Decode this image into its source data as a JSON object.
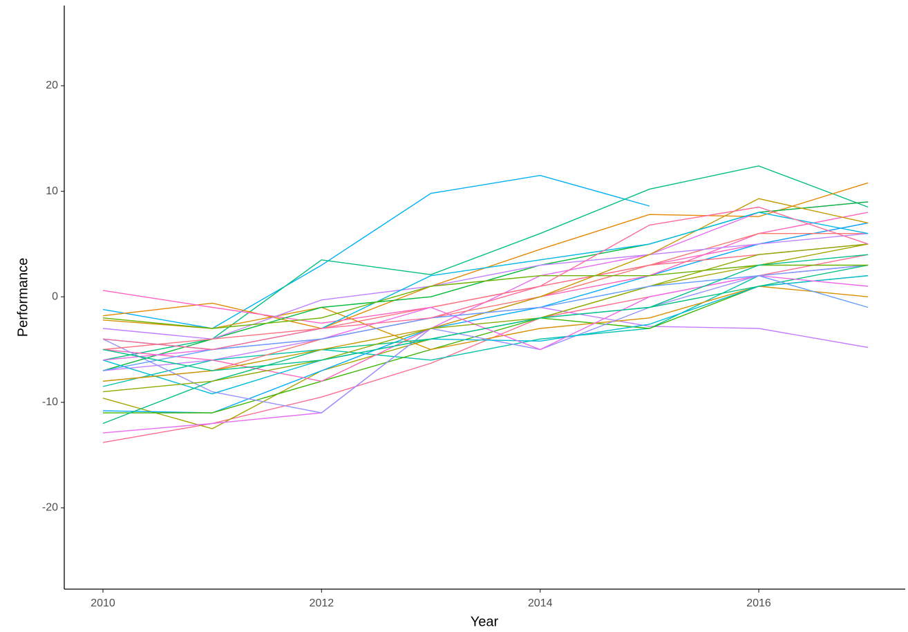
{
  "chart_data": {
    "type": "line",
    "xlabel": "Year",
    "ylabel": "Performance",
    "x": [
      2010,
      2011,
      2012,
      2013,
      2014,
      2015,
      2016,
      2017
    ],
    "xlim": [
      2009.646,
      2017.34
    ],
    "xticks": [
      2010,
      2012,
      2014,
      2016
    ],
    "ylim": [
      -27.7,
      27.6
    ],
    "yticks": [
      -20,
      -10,
      0,
      10,
      20
    ],
    "grid": false,
    "series": [
      {
        "color": "#00B0F6",
        "values": [
          -1.2,
          -3,
          3,
          9.8,
          11.5,
          8.6,
          null,
          null
        ]
      },
      {
        "color": "#00BF7D",
        "values": [
          -6,
          -4,
          3.5,
          2.1,
          6,
          10.2,
          12.4,
          8.5
        ]
      },
      {
        "color": "#C77CFF",
        "values": [
          -7,
          -6,
          -4,
          -2,
          -1,
          -2.8,
          -3,
          -4.8
        ]
      },
      {
        "color": "#E58700",
        "values": [
          -1.8,
          -0.6,
          -3,
          1,
          4.5,
          7.8,
          7.6,
          10.8
        ]
      },
      {
        "color": "#FF61C3",
        "values": [
          0.6,
          -1,
          -2.5,
          -1,
          1,
          3,
          5,
          7
        ]
      },
      {
        "color": "#FF6C91",
        "values": [
          -13.8,
          -12,
          -9.5,
          -6.3,
          -2,
          0,
          2,
          4
        ]
      },
      {
        "color": "#A3A500",
        "values": [
          -9.6,
          -12.5,
          -7,
          -4,
          -2,
          1,
          3,
          5
        ]
      },
      {
        "color": "#00C1AA",
        "values": [
          -8.5,
          -6,
          -5,
          -6,
          -4,
          -3,
          2,
          3
        ]
      },
      {
        "color": "#E76BF3",
        "values": [
          -12.9,
          -12,
          -11,
          -3,
          2,
          4,
          8,
          9
        ]
      },
      {
        "color": "#00A9FF",
        "values": [
          -10.8,
          -11,
          -7,
          -3,
          -1,
          2,
          5,
          7
        ]
      },
      {
        "color": "#39B600",
        "values": [
          -11,
          -11,
          -8,
          -5,
          -2,
          -3,
          1,
          2
        ]
      },
      {
        "color": "#D89000",
        "values": [
          -2.2,
          -3,
          -1,
          -5,
          -3,
          -2,
          1,
          0
        ]
      },
      {
        "color": "#FF62BC",
        "values": [
          -5,
          -6,
          -8,
          -3,
          0,
          2,
          6,
          8
        ]
      },
      {
        "color": "#9590FF",
        "values": [
          -4,
          -9,
          -11,
          -3,
          -5,
          -1,
          2,
          3
        ]
      },
      {
        "color": "#00BA38",
        "values": [
          -7,
          -4,
          -1,
          0,
          3,
          5,
          8,
          9
        ]
      },
      {
        "color": "#F8766D",
        "values": [
          -8,
          -7,
          -4,
          -2,
          0,
          3,
          6,
          6
        ]
      },
      {
        "color": "#00BCD8",
        "values": [
          -6,
          -9.2,
          -6,
          -4,
          -4.2,
          -2.6,
          1,
          2
        ]
      },
      {
        "color": "#BF80FF",
        "values": [
          -3,
          -4,
          -0.3,
          1,
          3,
          4,
          5,
          6
        ]
      },
      {
        "color": "#FC717F",
        "values": [
          -5,
          -4,
          -3,
          -1,
          1,
          3,
          4,
          5
        ]
      },
      {
        "color": "#00BF7D",
        "values": [
          -12,
          -8,
          -5,
          -4,
          -2,
          -1,
          1,
          3
        ]
      },
      {
        "color": "#C49A00",
        "values": [
          -8,
          -7,
          -5,
          -3,
          0,
          4,
          9.3,
          7
        ]
      },
      {
        "color": "#00B8E7",
        "values": [
          -4,
          -5,
          -3,
          2,
          3.5,
          5,
          8,
          6
        ]
      },
      {
        "color": "#F066EA",
        "values": [
          -6,
          -5,
          -4,
          -1,
          -5,
          0,
          2,
          1
        ]
      },
      {
        "color": "#6BB100",
        "values": [
          -2,
          -3,
          -2,
          1,
          2,
          2,
          3,
          3
        ]
      },
      {
        "color": "#8AAB00",
        "values": [
          -9,
          -8,
          -6,
          -3,
          -2,
          1,
          4,
          5
        ]
      },
      {
        "color": "#619CFF",
        "values": [
          -7,
          -5,
          -4,
          -2,
          -1,
          1,
          2,
          -1
        ]
      },
      {
        "color": "#FF6A98",
        "values": [
          -4,
          -5,
          -3,
          -2,
          1,
          6.8,
          8.5,
          5
        ]
      },
      {
        "color": "#00C08B",
        "values": [
          -5,
          -7,
          -6,
          -4,
          -2,
          -1,
          3,
          4
        ]
      }
    ]
  }
}
